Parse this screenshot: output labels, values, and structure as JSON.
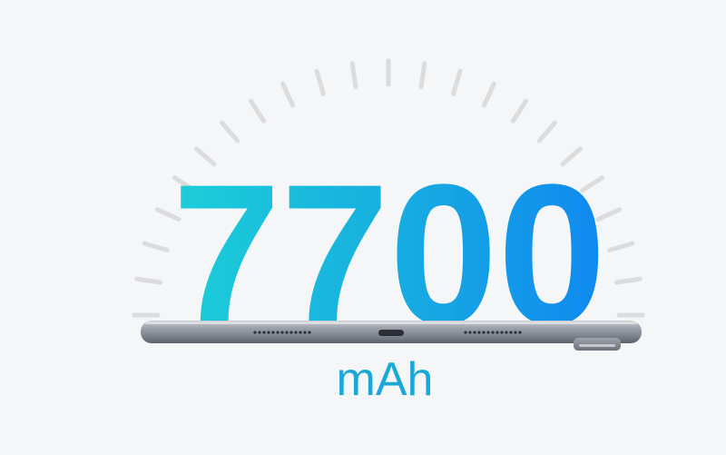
{
  "battery": {
    "capacity": "7700",
    "unit": "mAh"
  },
  "colors": {
    "background": "#f5f6f8",
    "gradient_start": "#1ccfd8",
    "gradient_end": "#0f88f0",
    "unit_color": "#1aa8d8",
    "ray_color": "#dcdcdc",
    "tablet_body": "#8d9098"
  },
  "icons": {
    "gauge_rays": "sunburst-rays",
    "device": "tablet-side-view"
  }
}
